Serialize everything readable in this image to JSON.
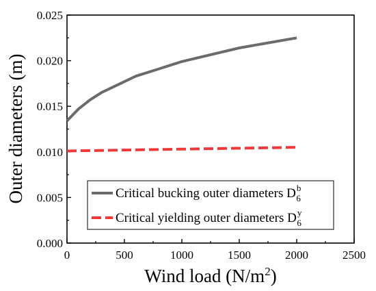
{
  "chart_data": {
    "type": "line",
    "xlabel": "Wind load (N/m",
    "xlabel_sup": "2",
    "xlabel_end": ")",
    "ylabel": "Outer  diameters (m)",
    "xlim": [
      0,
      2500
    ],
    "ylim": [
      0.0,
      0.025
    ],
    "xticks": [
      0,
      500,
      1000,
      1500,
      2000,
      2500
    ],
    "xtick_labels": [
      "0",
      "500",
      "1000",
      "1500",
      "2000",
      "2500"
    ],
    "yticks": [
      0.0,
      0.005,
      0.01,
      0.015,
      0.02,
      0.025
    ],
    "ytick_labels": [
      "0.000",
      "0.005",
      "0.010",
      "0.015",
      "0.020",
      "0.025"
    ],
    "grid": false,
    "legend_position": "bottom-right",
    "series": [
      {
        "name": "Critical bucking outer diameters D",
        "symbol": "D",
        "sub": "6",
        "sup": "b",
        "color": "#6b6b6b",
        "dash": "solid",
        "x": [
          0,
          100,
          200,
          300,
          400,
          600,
          800,
          1000,
          1200,
          1500,
          2000
        ],
        "y": [
          0.0134,
          0.0147,
          0.0157,
          0.0165,
          0.0171,
          0.0183,
          0.0191,
          0.0199,
          0.0205,
          0.0214,
          0.0225
        ]
      },
      {
        "name": "Critical yielding outer diameters D",
        "symbol": "D",
        "sub": "6",
        "sup": "y",
        "color": "#f0393b",
        "dash": "dashed",
        "x": [
          0,
          500,
          1000,
          1500,
          2000
        ],
        "y": [
          0.0101,
          0.0102,
          0.0103,
          0.0104,
          0.0105
        ]
      }
    ]
  }
}
